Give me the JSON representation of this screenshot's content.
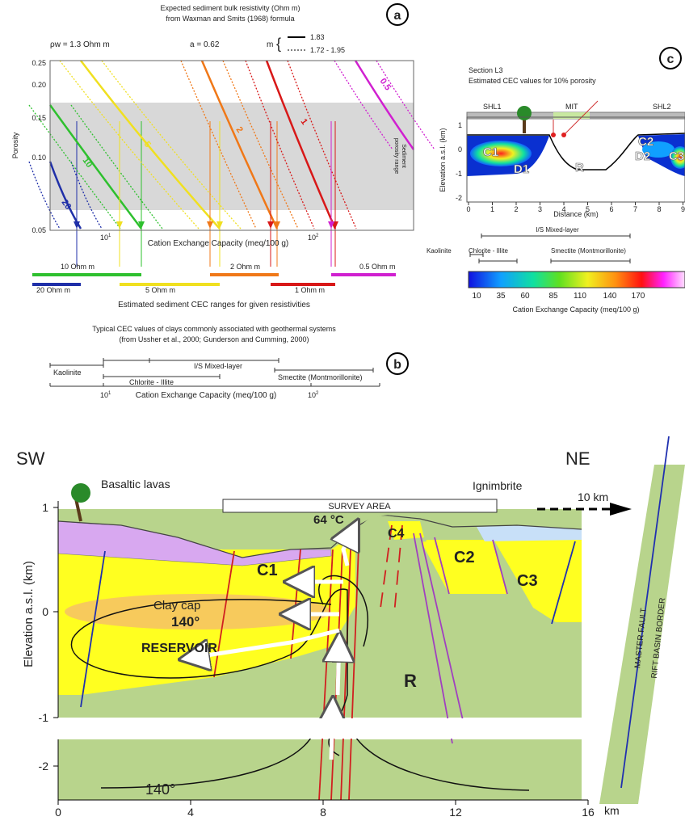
{
  "panel_a": {
    "label": "a",
    "title": [
      "Expected sediment bulk resistivity (Ohm m)",
      "from Waxman and Smits (1968) formula"
    ],
    "rho_w": "ρw = 1.3 Ohm m",
    "a_param": "a = 0.62",
    "m_param": "m",
    "m_solid": "1.83",
    "m_dashed": "1.72 - 1.95",
    "y_label": "Porosity",
    "y_ticks": [
      "0.25",
      "0.20",
      "0.15",
      "0.10",
      "0.05"
    ],
    "x_ticks": [
      {
        "base": "10",
        "exponent": "1"
      },
      {
        "base": "10",
        "exponent": "2"
      }
    ],
    "x_label": "Cation Exchange Capacity (meq/100 g)",
    "band_label": [
      "Sediment",
      "porosity range"
    ],
    "contours": [
      {
        "label": "20",
        "color": "#1f2fa8"
      },
      {
        "label": "10",
        "color": "#2ec02e"
      },
      {
        "label": "5",
        "color": "#f0e020"
      },
      {
        "label": "2",
        "color": "#f07818"
      },
      {
        "label": "1",
        "color": "#d81818"
      },
      {
        "label": "0.5",
        "color": "#d020d0"
      }
    ],
    "ranges": [
      "20 Ohm m",
      "10 Ohm m",
      "5 Ohm m",
      "2 Ohm m",
      "1 Ohm m",
      "0.5 Ohm m"
    ],
    "caption": "Estimated sediment CEC ranges for given resistivities"
  },
  "panel_b": {
    "label": "b",
    "title": [
      "Typical CEC values of clays commonly associated with geothermal systems",
      "(from Ussher et al., 2000; Gunderson and Cumming, 2000)"
    ],
    "clays": [
      "Kaolinite",
      "Chlorite - Illite",
      "I/S Mixed-layer",
      "Smectite (Montmorillonite)"
    ],
    "x_ticks": [
      {
        "base": "10",
        "exponent": "1"
      },
      {
        "base": "10",
        "exponent": "2"
      }
    ],
    "x_label": "Cation Exchange Capacity (meq/100 g)"
  },
  "panel_c": {
    "label": "c",
    "title": [
      "Section L3",
      "Estimated CEC values for 10% porosity"
    ],
    "sections": [
      "SHL1",
      "MIT",
      "SHL2"
    ],
    "y_label": "Elevation a.s.l. (km)",
    "y_ticks": [
      "1",
      "0",
      "-1",
      "-2"
    ],
    "x_ticks": [
      "0",
      "1",
      "2",
      "3",
      "4",
      "5",
      "6",
      "7",
      "8",
      "9"
    ],
    "x_label": "Distance (km)",
    "units": [
      "C1",
      "D1",
      "R",
      "C2",
      "D2",
      "C3"
    ],
    "clays": [
      "Kaolinite",
      "Chlorite - Illite",
      "I/S Mixed-layer",
      "Smectite (Montmorillonite)"
    ],
    "colorbar_ticks": [
      "10",
      "35",
      "60",
      "85",
      "110",
      "140",
      "170"
    ],
    "colorbar_label": "Cation Exchange Capacity (meq/100 g)"
  },
  "section": {
    "sw": "SW",
    "ne": "NE",
    "basaltic": "Basaltic lavas",
    "survey": "SURVEY AREA",
    "ignimbrite": "Ignimbrite",
    "distance": "10 km",
    "temperature": "64 °C",
    "units": [
      "C1",
      "C2",
      "C3",
      "C4",
      "R"
    ],
    "clay_cap": "Clay cap",
    "isotherm": "140°",
    "isotherm_deep": "140°",
    "reservoir": "RESERVOIR",
    "master_fault": "MASTER FAULT",
    "rift_border": "RIFT BASIN BORDER",
    "y_label": "Elevation a.s.l. (km)",
    "y_ticks": [
      "1",
      "0",
      "-1",
      "-2"
    ],
    "x_ticks": [
      "0",
      "4",
      "8",
      "12",
      "16"
    ],
    "x_unit": "km"
  }
}
